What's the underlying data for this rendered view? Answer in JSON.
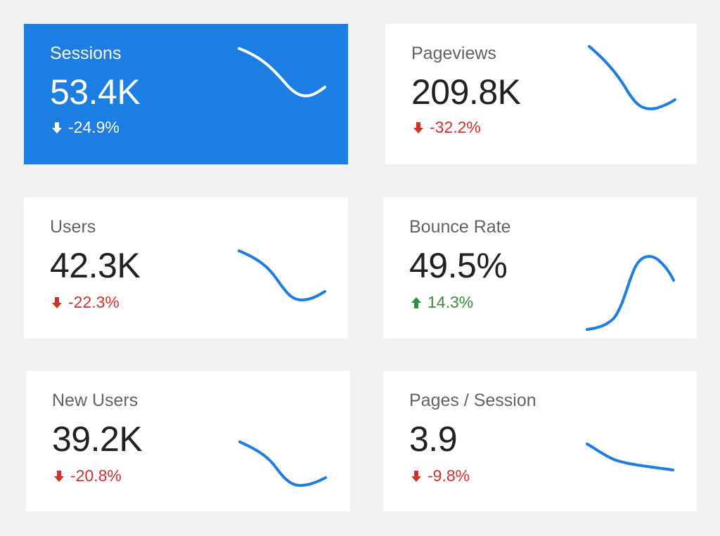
{
  "colors": {
    "accent": "#1c7de2",
    "negative": "#d0312d",
    "positive": "#3a8a42",
    "page_background": "#f1f1f1",
    "card_background": "#ffffff"
  },
  "cards": [
    {
      "label": "Sessions",
      "value": "53.4K",
      "change": "-24.9%",
      "direction": "down",
      "active": true,
      "arrow_icon": "arrow-down-icon",
      "sparkline_icon": "sparkline-trend-down"
    },
    {
      "label": "Pageviews",
      "value": "209.8K",
      "change": "-32.2%",
      "direction": "down",
      "active": false,
      "arrow_icon": "arrow-down-icon",
      "sparkline_icon": "sparkline-trend-down"
    },
    {
      "label": "Users",
      "value": "42.3K",
      "change": "-22.3%",
      "direction": "down",
      "active": false,
      "arrow_icon": "arrow-down-icon",
      "sparkline_icon": "sparkline-trend-down"
    },
    {
      "label": "Bounce Rate",
      "value": "49.5%",
      "change": "14.3%",
      "direction": "up",
      "active": false,
      "arrow_icon": "arrow-up-icon",
      "sparkline_icon": "sparkline-trend-up"
    },
    {
      "label": "New Users",
      "value": "39.2K",
      "change": "-20.8%",
      "direction": "down",
      "active": false,
      "arrow_icon": "arrow-down-icon",
      "sparkline_icon": "sparkline-trend-down"
    },
    {
      "label": "Pages / Session",
      "value": "3.9",
      "change": "-9.8%",
      "direction": "down",
      "active": false,
      "arrow_icon": "arrow-down-icon",
      "sparkline_icon": "sparkline-trend-down"
    }
  ]
}
